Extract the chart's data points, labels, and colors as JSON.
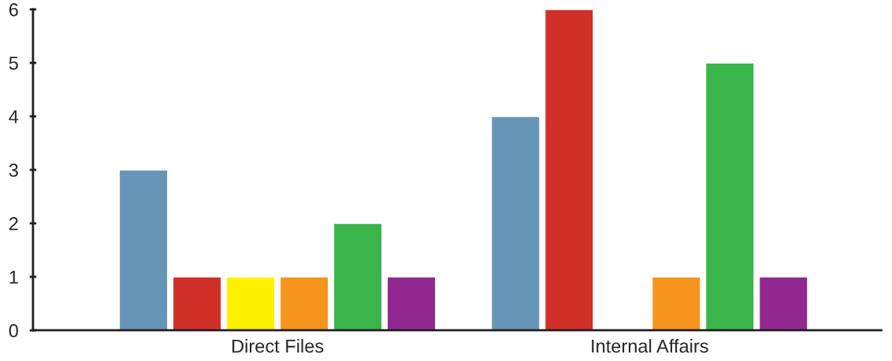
{
  "chart_data": {
    "type": "bar",
    "categories": [
      "Direct Files",
      "Internal Affairs"
    ],
    "series": [
      {
        "color": "#6795b5",
        "values": [
          3,
          4
        ]
      },
      {
        "color": "#d03027",
        "values": [
          1,
          6
        ]
      },
      {
        "color": "#fff200",
        "values": [
          1,
          null
        ]
      },
      {
        "color": "#f7941d",
        "values": [
          1,
          1
        ]
      },
      {
        "color": "#39b54a",
        "values": [
          2,
          5
        ]
      },
      {
        "color": "#92278f",
        "values": [
          1,
          1
        ]
      }
    ],
    "ylim": [
      0,
      6
    ],
    "yticks": [
      0,
      1,
      2,
      3,
      4,
      5,
      6
    ],
    "grid": false,
    "legend": false
  }
}
